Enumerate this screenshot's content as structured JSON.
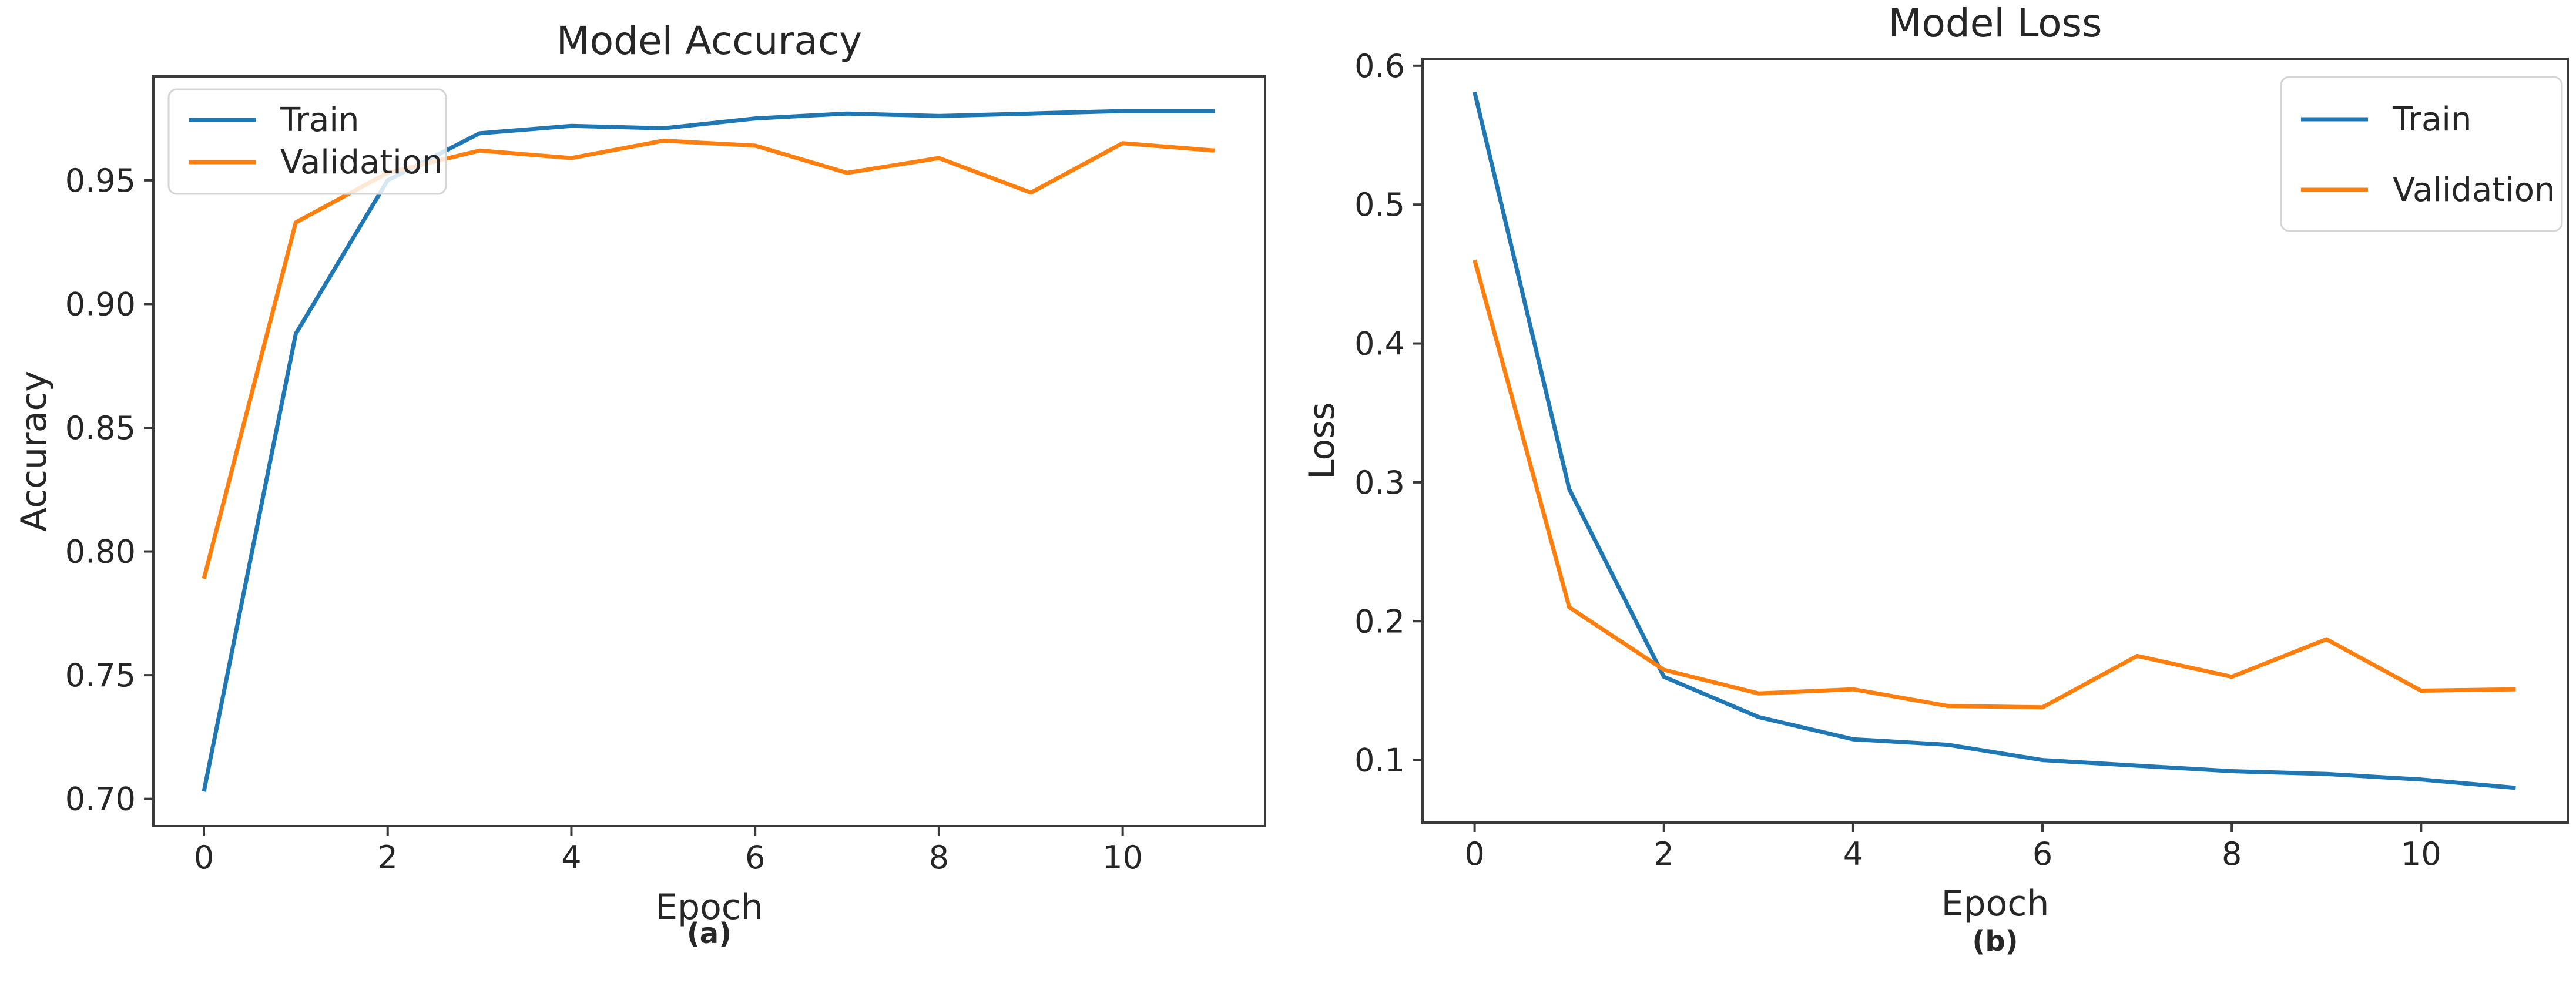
{
  "figure": {
    "background": "#ffffff",
    "text_color": "#262626",
    "spine_color": "#3a3a3a",
    "legend_border_color": "#d5d5d5",
    "accent_blue": "#1f77b4",
    "accent_orange": "#ff7f0e"
  },
  "chart_data": [
    {
      "id": "accuracy",
      "type": "line",
      "title": "Model Accuracy",
      "xlabel": "Epoch",
      "ylabel": "Accuracy",
      "caption": "(a)",
      "grid": false,
      "legend_position": "upper-left",
      "x": [
        0,
        1,
        2,
        3,
        4,
        5,
        6,
        7,
        8,
        9,
        10,
        11
      ],
      "series": [
        {
          "name": "Train",
          "color": "#1f77b4",
          "values": [
            0.703,
            0.888,
            0.95,
            0.969,
            0.972,
            0.971,
            0.975,
            0.977,
            0.976,
            0.977,
            0.978,
            0.978
          ]
        },
        {
          "name": "Validation",
          "color": "#ff7f0e",
          "values": [
            0.789,
            0.933,
            0.953,
            0.962,
            0.959,
            0.966,
            0.964,
            0.953,
            0.959,
            0.945,
            0.965,
            0.962
          ]
        }
      ],
      "xlim": [
        -0.55,
        11.55
      ],
      "ylim": [
        0.689,
        0.992
      ],
      "xticks": [
        0,
        2,
        4,
        6,
        8,
        10
      ],
      "xtick_labels": [
        "0",
        "2",
        "4",
        "6",
        "8",
        "10"
      ],
      "yticks": [
        0.7,
        0.75,
        0.8,
        0.85,
        0.9,
        0.95
      ],
      "ytick_labels": [
        "0.70",
        "0.75",
        "0.80",
        "0.85",
        "0.90",
        "0.95"
      ]
    },
    {
      "id": "loss",
      "type": "line",
      "title": "Model Loss",
      "xlabel": "Epoch",
      "ylabel": "Loss",
      "caption": "(b)",
      "grid": false,
      "legend_position": "upper-right",
      "x": [
        0,
        1,
        2,
        3,
        4,
        5,
        6,
        7,
        8,
        9,
        10,
        11
      ],
      "series": [
        {
          "name": "Train",
          "color": "#1f77b4",
          "values": [
            0.581,
            0.295,
            0.16,
            0.131,
            0.115,
            0.111,
            0.1,
            0.096,
            0.092,
            0.09,
            0.086,
            0.08
          ]
        },
        {
          "name": "Validation",
          "color": "#ff7f0e",
          "values": [
            0.46,
            0.21,
            0.165,
            0.148,
            0.151,
            0.139,
            0.138,
            0.175,
            0.16,
            0.187,
            0.15,
            0.151
          ]
        }
      ],
      "xlim": [
        -0.55,
        11.55
      ],
      "ylim": [
        0.055,
        0.605
      ],
      "xticks": [
        0,
        2,
        4,
        6,
        8,
        10
      ],
      "xtick_labels": [
        "0",
        "2",
        "4",
        "6",
        "8",
        "10"
      ],
      "yticks": [
        0.1,
        0.2,
        0.3,
        0.4,
        0.5,
        0.6
      ],
      "ytick_labels": [
        "0.1",
        "0.2",
        "0.3",
        "0.4",
        "0.5",
        "0.6"
      ]
    }
  ],
  "legend": {
    "train_label": "Train",
    "validation_label": "Validation"
  }
}
